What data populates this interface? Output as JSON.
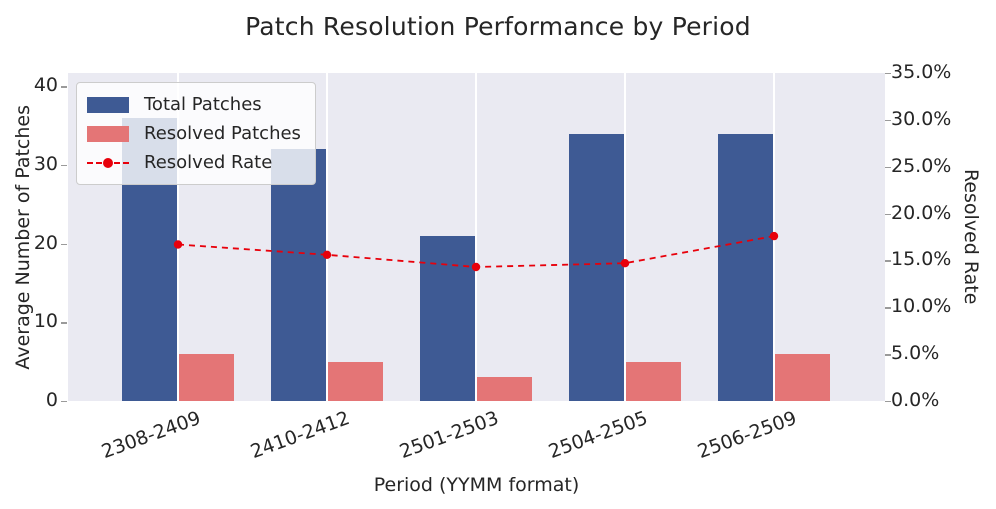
{
  "chart_data": {
    "type": "bar",
    "title": "Patch Resolution Performance by Period",
    "xlabel": "Period (YYMM format)",
    "ylabel": "Average Number of Patches",
    "ylabel_right": "Resolved Rate",
    "categories": [
      "2308-2409",
      "2410-2412",
      "2501-2503",
      "2504-2505",
      "2506-2509"
    ],
    "series": [
      {
        "name": "Total Patches",
        "kind": "bar",
        "color": "#3e5a94",
        "axis": "left",
        "values": [
          36,
          32,
          21,
          34,
          34
        ]
      },
      {
        "name": "Resolved Patches",
        "kind": "bar",
        "color": "#e47576",
        "axis": "left",
        "values": [
          6,
          5,
          3,
          5,
          6
        ]
      },
      {
        "name": "Resolved Rate",
        "kind": "line",
        "color": "#e8000b",
        "axis": "right",
        "values": [
          16.7,
          15.6,
          14.3,
          14.7,
          17.6
        ],
        "unit": "%"
      }
    ],
    "left_axis": {
      "ticks": [
        "0",
        "10",
        "20",
        "30",
        "40"
      ],
      "tick_values": [
        0,
        10,
        20,
        30,
        40
      ],
      "display_max": 41.7
    },
    "right_axis": {
      "ticks": [
        "0.0%",
        "5.0%",
        "10.0%",
        "15.0%",
        "20.0%",
        "25.0%",
        "30.0%",
        "35.0%"
      ],
      "tick_values": [
        0,
        5,
        10,
        15,
        20,
        25,
        30,
        35
      ],
      "display_max": 35
    },
    "legend": {
      "position": "upper-left",
      "entries": [
        "Total Patches",
        "Resolved Patches",
        "Resolved Rate"
      ]
    },
    "grid": {
      "vertical": true,
      "horizontal": false,
      "color": "#ffffff"
    },
    "colors": {
      "plot_bg": "#eaeaf2",
      "figure_bg": "#ffffff",
      "text": "#262626"
    }
  }
}
